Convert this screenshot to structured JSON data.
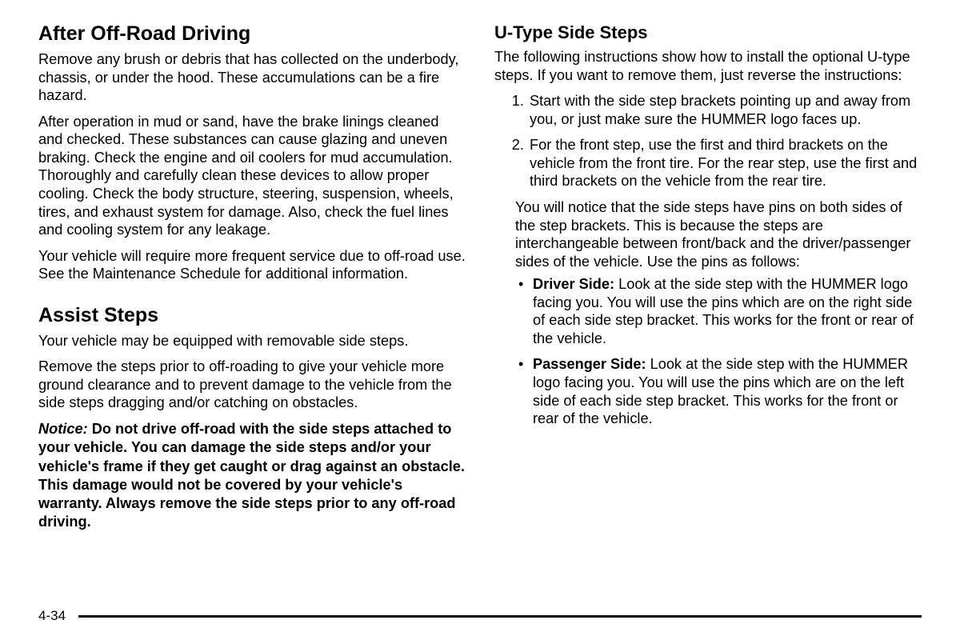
{
  "page_number": "4-34",
  "left": {
    "h1": "After Off-Road Driving",
    "p1": "Remove any brush or debris that has collected on the underbody, chassis, or under the hood. These accumulations can be a fire hazard.",
    "p2": "After operation in mud or sand, have the brake linings cleaned and checked. These substances can cause glazing and uneven braking. Check the engine and oil coolers for mud accumulation. Thoroughly and carefully clean these devices to allow proper cooling. Check the body structure, steering, suspension, wheels, tires, and exhaust system for damage. Also, check the fuel lines and cooling system for any leakage.",
    "p3": "Your vehicle will require more frequent service due to off-road use. See the Maintenance Schedule for additional information.",
    "h2": "Assist Steps",
    "p4": "Your vehicle may be equipped with removable side steps.",
    "p5": "Remove the steps prior to off-roading to give your vehicle more ground clearance and to prevent damage to the vehicle from the side steps dragging and/or catching on obstacles.",
    "notice_label": "Notice:",
    "notice_body": "   Do not drive off-road with the side steps attached to your vehicle. You can damage the side steps and/or your vehicle's frame if they get caught or drag against an obstacle. This damage would not be covered by your vehicle's warranty. Always remove the side steps prior to any off-road driving."
  },
  "right": {
    "h1": "U-Type Side Steps",
    "p1": "The following instructions show how to install the optional U-type steps. If you want to remove them, just reverse the instructions:",
    "step1": "Start with the side step brackets pointing up and away from you, or just make sure the HUMMER logo faces up.",
    "step2": "For the front step, use the first and third brackets on the vehicle from the front tire. For the rear step, use the first and third brackets on the vehicle from the rear tire.",
    "step2_cont": "You will notice that the side steps have pins on both sides of the step brackets. This is because the steps are interchangeable between front/back and the driver/passenger sides of the vehicle. Use the pins as follows:",
    "b1_label": "Driver Side:",
    "b1_body": " Look at the side step with the HUMMER logo facing you. You will use the pins which are on the right side of each side step bracket. This works for the front or rear of the vehicle.",
    "b2_label": "Passenger Side:",
    "b2_body": " Look at the side step with the HUMMER logo facing you. You will use the pins which are on the left side of each side step bracket. This works for the front or rear of the vehicle."
  },
  "colors": {
    "text": "#000000",
    "background": "#ffffff",
    "rule": "#000000"
  },
  "typography": {
    "heading_fontsize_pt": 19,
    "subheading_fontsize_pt": 17,
    "body_fontsize_pt": 14,
    "font_family": "Arial, Helvetica, sans-serif"
  }
}
